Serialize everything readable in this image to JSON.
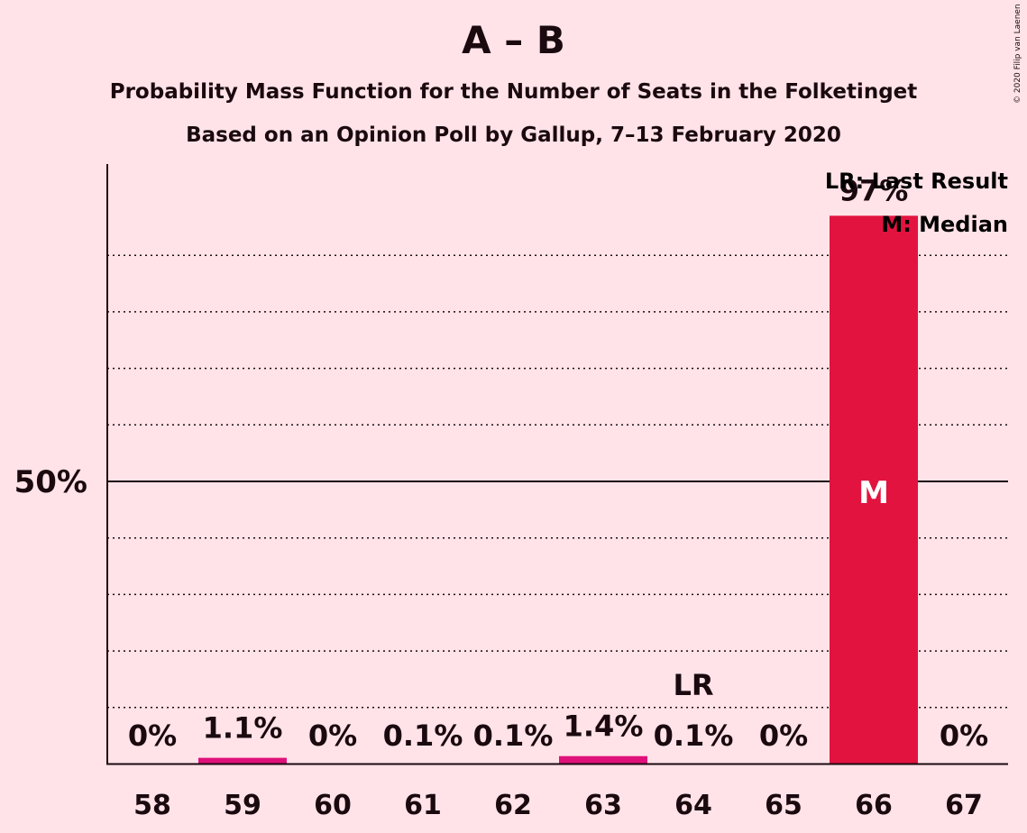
{
  "header": {
    "title": "A – B",
    "subtitle_1": "Probability Mass Function for the Number of Seats in the Folketinget",
    "subtitle_2": "Based on an Opinion Poll by Gallup, 7–13 February 2020",
    "copyright": "© 2020 Filip van Laenen"
  },
  "legend": {
    "last_result": "LR: Last Result",
    "median": "M: Median"
  },
  "colors": {
    "background": "#ffe3e8",
    "bar_main": "#e2133f",
    "bar_small": "#e0107a",
    "text": "#1a0a10"
  },
  "chart_data": {
    "type": "bar",
    "categories": [
      "58",
      "59",
      "60",
      "61",
      "62",
      "63",
      "64",
      "65",
      "66",
      "67"
    ],
    "values": [
      0,
      1.1,
      0,
      0.1,
      0.1,
      1.4,
      0.1,
      0,
      97,
      0
    ],
    "labels": [
      "0%",
      "1.1%",
      "0%",
      "0.1%",
      "0.1%",
      "1.4%",
      "0.1%",
      "0%",
      "97%",
      "0%"
    ],
    "ylim": [
      0,
      100
    ],
    "y_ticks": [
      {
        "value": 50,
        "label": "50%"
      }
    ],
    "grid_lines": [
      10,
      20,
      30,
      40,
      60,
      70,
      80,
      90
    ],
    "last_result": {
      "category": "64",
      "label": "LR"
    },
    "median": {
      "category": "66",
      "label": "M"
    },
    "legend_position": "top-right"
  }
}
